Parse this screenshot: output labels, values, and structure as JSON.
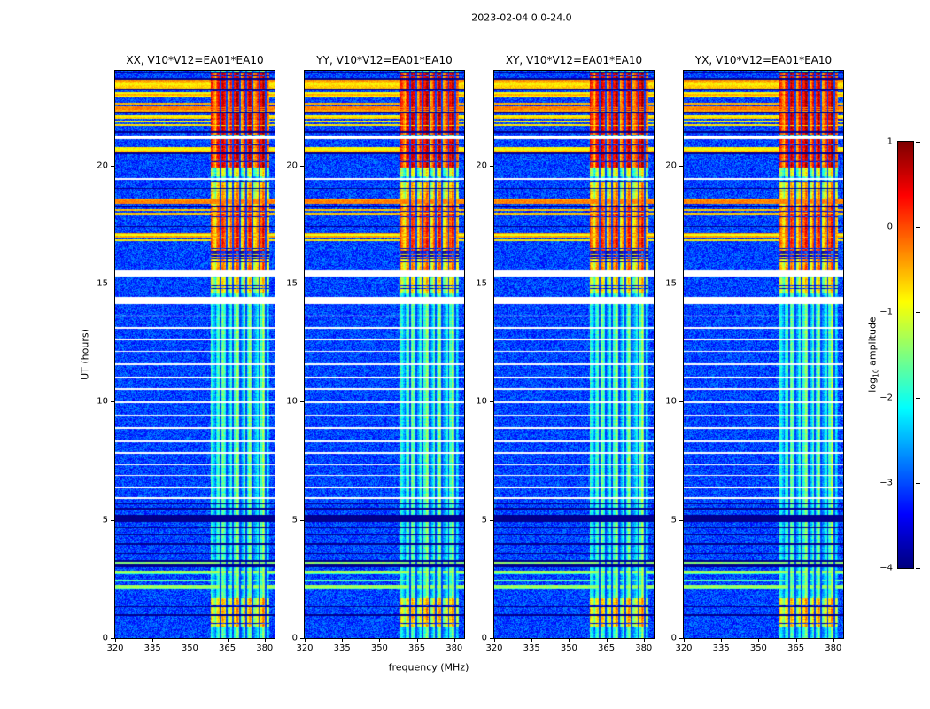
{
  "chart_data": {
    "type": "heatmap",
    "title": "2023-02-04 0.0-24.0",
    "xlabel": "frequency (MHz)",
    "ylabel": "UT (hours)",
    "x_range": [
      320,
      384
    ],
    "y_range": [
      0,
      24
    ],
    "x_ticks": [
      320,
      335,
      350,
      365,
      380
    ],
    "y_ticks": [
      0,
      5,
      10,
      15,
      20
    ],
    "colormap": "jet",
    "value_range": [
      -4,
      1
    ],
    "panels": [
      {
        "pol": "XX",
        "title": "XX, V10*V12=EA01*EA10"
      },
      {
        "pol": "YY",
        "title": "YY, V10*V12=EA01*EA10"
      },
      {
        "pol": "XY",
        "title": "XY, V10*V12=EA01*EA10"
      },
      {
        "pol": "YX",
        "title": "YX, V10*V12=EA01*EA10"
      }
    ],
    "colorbar": {
      "label": "log10 amplitude",
      "label_prefix": "log",
      "label_sub": "10",
      "label_suffix": " amplitude",
      "tick_values": [
        1,
        0,
        -1,
        -2,
        -3,
        -4
      ],
      "tick_labels": [
        "1",
        "0",
        "−1",
        "−2",
        "−3",
        "−4"
      ],
      "vmin": -4,
      "vmax": 1
    },
    "features": {
      "background_v": -3.05,
      "band": {
        "f0": 358.5,
        "f1": 381.8,
        "base_v": -2.0,
        "dark_lines": [
          362.2,
          364.8,
          367.4,
          370.0,
          372.6,
          375.2,
          377.8,
          380.4
        ],
        "dark_row_p": 0.12
      },
      "hot_ranges": [
        {
          "t0": 0.5,
          "t1": 1.7,
          "v": -0.9
        },
        {
          "t0": 14.6,
          "t1": 15.28,
          "v": -1.05
        },
        {
          "t0": 15.55,
          "t1": 16.4,
          "v": -0.55
        },
        {
          "t0": 16.4,
          "t1": 18.35,
          "v": -0.2
        },
        {
          "t0": 18.35,
          "t1": 19.35,
          "v": -0.75
        },
        {
          "t0": 19.55,
          "t1": 19.9,
          "v": -1.3
        },
        {
          "t0": 19.9,
          "t1": 21.1,
          "v": 0.2
        },
        {
          "t0": 21.3,
          "t1": 23.95,
          "v": 0.25
        }
      ],
      "stripe_groups": [
        {
          "t0": 2.05,
          "t1": 3.35,
          "v": -1.6,
          "density": 0.55,
          "black": 0.15
        },
        {
          "t0": 16.8,
          "t1": 17.15,
          "v": -0.6,
          "density": 0.7,
          "black": 0.1
        },
        {
          "t0": 17.9,
          "t1": 18.6,
          "v": -0.5,
          "density": 0.75,
          "black": 0.1
        },
        {
          "t0": 20.4,
          "t1": 20.8,
          "v": -0.6,
          "density": 0.4,
          "black": 0.05
        },
        {
          "t0": 21.3,
          "t1": 23.95,
          "v": -0.5,
          "density": 0.45,
          "black": 0.12
        }
      ],
      "white_rows": [
        [
          5.9,
          0.06
        ],
        [
          6.35,
          0.06
        ],
        [
          6.85,
          0.06
        ],
        [
          7.3,
          0.06
        ],
        [
          7.8,
          0.06
        ],
        [
          8.3,
          0.06
        ],
        [
          8.85,
          0.06
        ],
        [
          9.4,
          0.06
        ],
        [
          9.95,
          0.06
        ],
        [
          10.5,
          0.06
        ],
        [
          11.0,
          0.06
        ],
        [
          11.55,
          0.06
        ],
        [
          12.1,
          0.06
        ],
        [
          12.6,
          0.06
        ],
        [
          13.1,
          0.06
        ],
        [
          13.6,
          0.06
        ],
        [
          14.15,
          0.3
        ],
        [
          15.3,
          0.25
        ],
        [
          19.4,
          0.06
        ],
        [
          21.1,
          0.18
        ]
      ],
      "black_rows": [
        [
          0.95,
          0.05
        ],
        [
          1.3,
          0.04
        ],
        [
          3.55,
          0.05
        ],
        [
          3.95,
          0.05
        ],
        [
          4.35,
          0.05
        ],
        [
          4.65,
          0.05
        ],
        [
          4.9,
          0.3
        ],
        [
          5.45,
          0.05
        ],
        [
          5.65,
          0.04
        ],
        [
          17.4,
          0.05
        ],
        [
          19.0,
          0.04
        ]
      ]
    }
  }
}
